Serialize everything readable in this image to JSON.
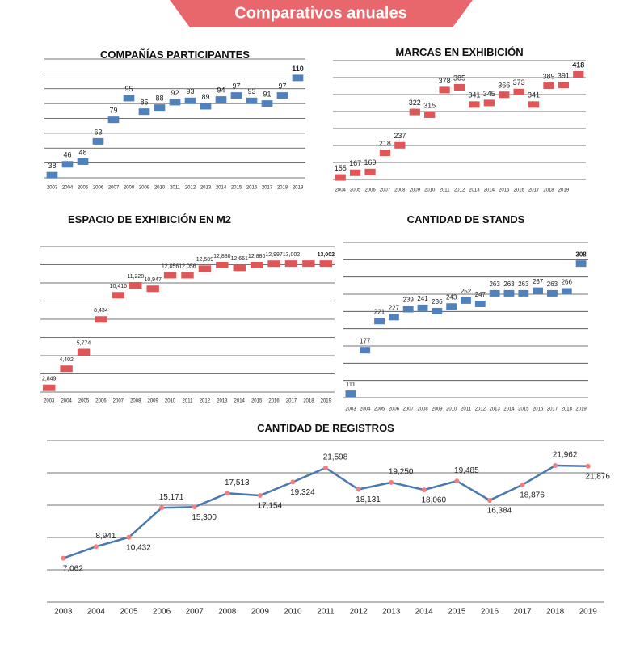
{
  "header": {
    "title": "Comparativos anuales"
  },
  "chart_data": [
    {
      "type": "bar",
      "title": "COMPAÑÍAS PARTICIPANTES",
      "color": "#4f81bd",
      "categories": [
        "2003",
        "2004",
        "2005",
        "2006",
        "2007",
        "2008",
        "2009",
        "2010",
        "2011",
        "2012",
        "2013",
        "2014",
        "2015",
        "2016",
        "2017",
        "2018",
        "2019"
      ],
      "values": [
        38,
        46,
        48,
        63,
        79,
        95,
        85,
        88,
        92,
        93,
        89,
        94,
        97,
        93,
        91,
        97,
        110
      ],
      "ylim": [
        36,
        124
      ],
      "grid": true
    },
    {
      "type": "bar",
      "title": "MARCAS EN EXHIBICIÓN",
      "color": "#e05555",
      "categories": [
        "2004",
        "2005",
        "2006",
        "2007",
        "2008",
        "2009",
        "2010",
        "2011",
        "2012",
        "2013",
        "2014",
        "2015",
        "2016",
        "2017",
        "2018",
        "2019",
        null
      ],
      "values": [
        155,
        167,
        169,
        218,
        237,
        322,
        315,
        378,
        385,
        341,
        345,
        366,
        373,
        341,
        389,
        391,
        418
      ],
      "ylim": [
        150,
        453
      ],
      "grid": true
    },
    {
      "type": "bar",
      "title": "ESPACIO DE EXHIBICIÓN EN M2",
      "color": "#e05555",
      "categories": [
        "2003",
        "2004",
        "2005",
        "2006",
        "2007",
        "2008",
        "2009",
        "2010",
        "2011",
        "2012",
        "2013",
        "2014",
        "2015",
        "2016",
        "2017",
        "2018",
        "2019"
      ],
      "values": [
        2849,
        4402,
        5774,
        8434,
        10416,
        11228,
        10947,
        12056,
        12056,
        12589,
        12880,
        12661,
        12880,
        12997,
        13002,
        13002,
        13002
      ],
      "value_labels": [
        "2,849",
        "4,402",
        "5,774",
        "8,434",
        "10,416",
        "11,228",
        "10,947",
        "12,056",
        "12,056",
        "12,589",
        "12,880",
        "12,661",
        "12,880",
        "12,997",
        "13,002",
        null,
        "13,002"
      ],
      "ylim": [
        2500,
        14400
      ],
      "grid": true
    },
    {
      "type": "bar",
      "title": "CANTIDAD DE STANDS",
      "color": "#4f81bd",
      "categories": [
        "2003",
        "2004",
        "2005",
        "2006",
        "2007",
        "2008",
        "2009",
        "2010",
        "2011",
        "2012",
        "2013",
        "2014",
        "2015",
        "2016",
        "2017",
        "2018",
        "2019"
      ],
      "values": [
        111,
        177,
        221,
        227,
        239,
        241,
        236,
        243,
        252,
        247,
        263,
        263,
        263,
        267,
        263,
        266,
        308
      ],
      "ylim": [
        105,
        340
      ],
      "grid": true
    },
    {
      "type": "line",
      "title": "CANTIDAD DE REGISTROS",
      "color": "#4a78b0",
      "marker_color": "#f08080",
      "categories": [
        "2003",
        "2004",
        "2005",
        "2006",
        "2007",
        "2008",
        "2009",
        "2010",
        "2011",
        "2012",
        "2013",
        "2014",
        "2015",
        "2016",
        "2017",
        "2018",
        "2019"
      ],
      "values": [
        7062,
        8941,
        10432,
        15171,
        15300,
        17513,
        17154,
        19324,
        21598,
        18131,
        19250,
        18060,
        19485,
        16384,
        18876,
        21962,
        21876
      ],
      "value_labels": [
        "7,062",
        "8,941",
        "10,432",
        "15,171",
        "15,300",
        "17,513",
        "17,154",
        "19,324",
        "21,598",
        "18,131",
        "19,250",
        "18,060",
        "19,485",
        "16,384",
        "18,876",
        "21,962",
        "21,876"
      ],
      "ylim": [
        0,
        26000
      ],
      "grid": true
    }
  ]
}
